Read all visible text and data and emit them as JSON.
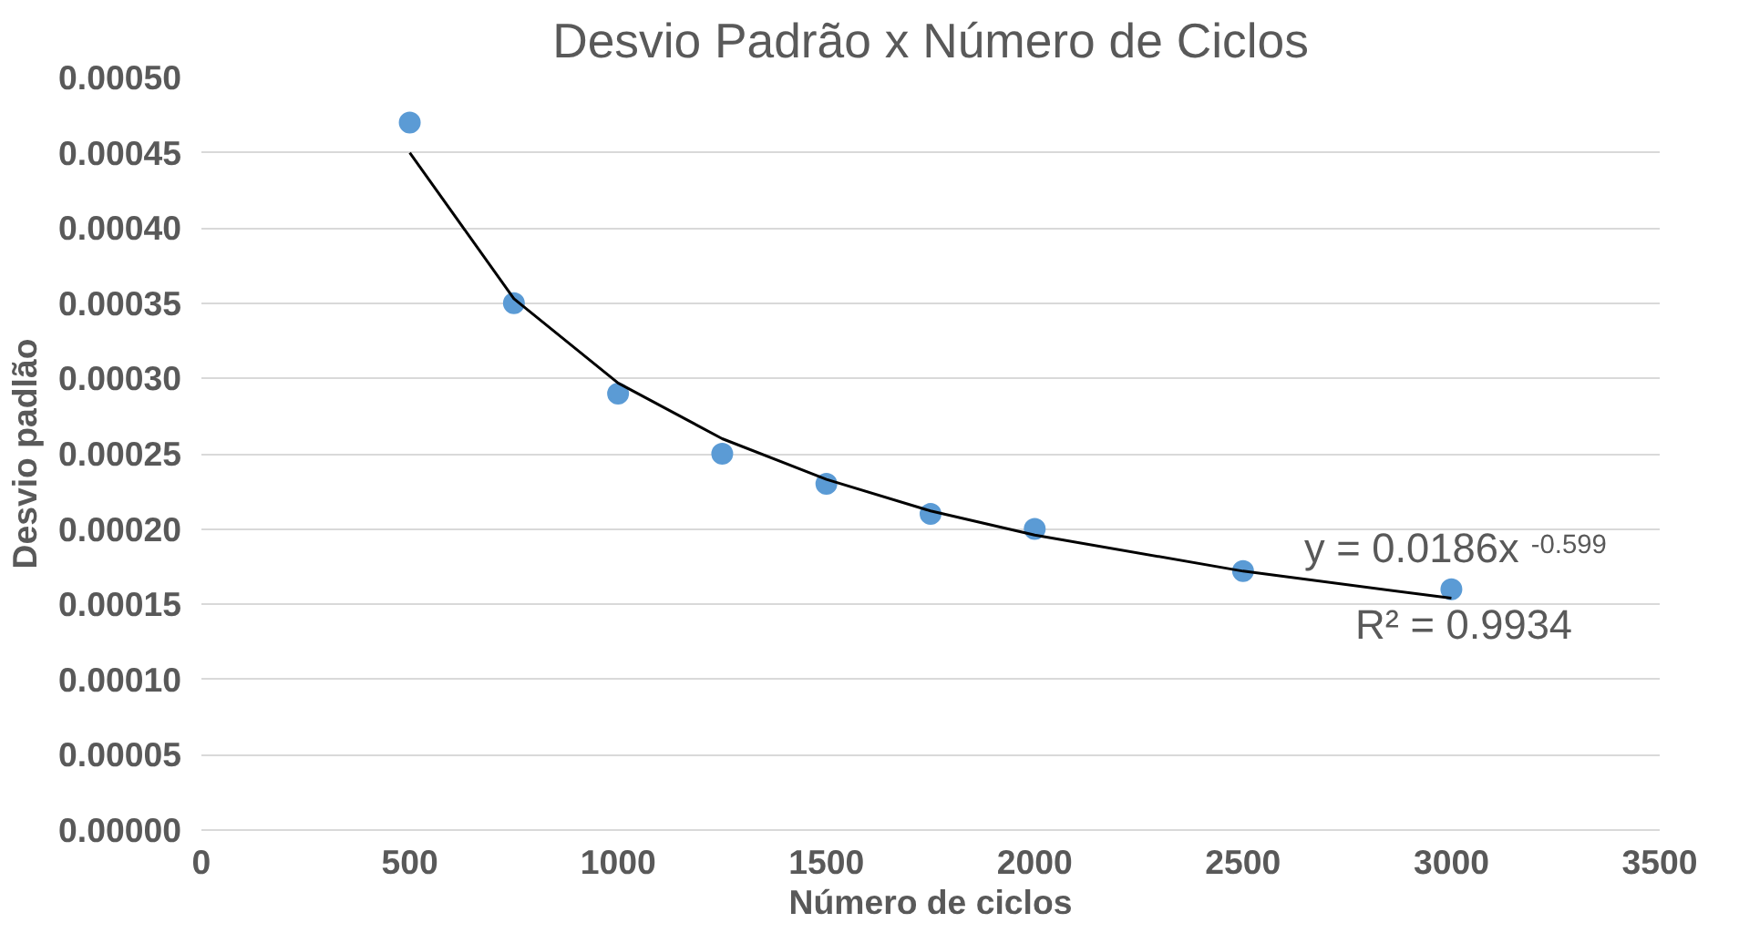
{
  "chart_data": {
    "type": "scatter",
    "title": "Desvio Padrão x Número de Ciclos",
    "xlabel": "Número de ciclos",
    "ylabel": "Desvio padlão",
    "x": [
      500,
      750,
      1000,
      1250,
      1500,
      1750,
      2000,
      2500,
      3000
    ],
    "series": [
      {
        "color": "#5b9bd5",
        "marker": "circle",
        "values": [
          0.00047,
          0.00035,
          0.00029,
          0.00025,
          0.00023,
          0.00021,
          0.0002,
          0.000172,
          0.00016
        ]
      },
      {
        "type": "line",
        "color": "#000000",
        "line_style": "solid",
        "x": [
          500,
          750,
          1000,
          1250,
          1500,
          1750,
          2000,
          2500,
          3000
        ],
        "values": [
          0.00045,
          0.000353,
          0.000297,
          0.00026,
          0.000233,
          0.000212,
          0.000196,
          0.000172,
          0.000154
        ]
      }
    ],
    "annotations": [
      "y = 0.0186x$^{-0.599}$",
      "R² = 0.9934"
    ],
    "xlim": [
      0,
      3500
    ],
    "xticks": [
      0,
      500,
      1000,
      1500,
      2000,
      2500,
      3000,
      3500
    ],
    "ylim": [
      0,
      0.0005
    ],
    "yticks": [
      {
        "value": 0,
        "label": "0.00000"
      },
      {
        "value": 5e-05,
        "label": "0.00005"
      },
      {
        "value": 0.0001,
        "label": "0.00010"
      },
      {
        "value": 0.00015,
        "label": "0.00015"
      },
      {
        "value": 0.0002,
        "label": "0.00020"
      },
      {
        "value": 0.00025,
        "label": "0.00025"
      },
      {
        "value": 0.0003,
        "label": "0.00030"
      },
      {
        "value": 0.00035,
        "label": "0.00035"
      },
      {
        "value": 0.0004,
        "label": "0.00040"
      },
      {
        "value": 0.00045,
        "label": "0.00045"
      },
      {
        "value": 0.0005,
        "label": "0.00050"
      }
    ],
    "grid": "y"
  }
}
